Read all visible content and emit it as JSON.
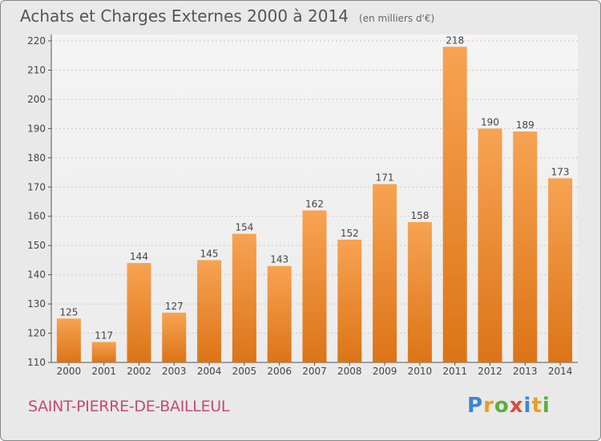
{
  "chart_data": {
    "type": "bar",
    "title": "Achats et Charges Externes 2000 à 2014",
    "subtitle": "(en milliers d'€)",
    "categories": [
      "2000",
      "2001",
      "2002",
      "2003",
      "2004",
      "2005",
      "2006",
      "2007",
      "2008",
      "2009",
      "2010",
      "2011",
      "2012",
      "2013",
      "2014"
    ],
    "values": [
      125,
      117,
      144,
      127,
      145,
      154,
      143,
      162,
      152,
      171,
      158,
      218,
      190,
      189,
      173
    ],
    "ylim": [
      110,
      220
    ],
    "yticks": [
      110,
      120,
      130,
      140,
      150,
      160,
      170,
      180,
      190,
      200,
      210,
      220
    ],
    "grid": true,
    "bar_color": "#f0923a"
  },
  "footer": {
    "commune": "SAINT-PIERRE-DE-BAILLEUL",
    "logo": {
      "text": "Proxiti",
      "letters": [
        {
          "ch": "P",
          "color": "#3b86d0"
        },
        {
          "ch": "r",
          "color": "#e8a020"
        },
        {
          "ch": "o",
          "color": "#5fae3a"
        },
        {
          "ch": "x",
          "color": "#e04a3c"
        },
        {
          "ch": "i",
          "color": "#3b86d0"
        },
        {
          "ch": "t",
          "color": "#e8a020"
        },
        {
          "ch": "i",
          "color": "#5fae3a"
        }
      ]
    }
  }
}
